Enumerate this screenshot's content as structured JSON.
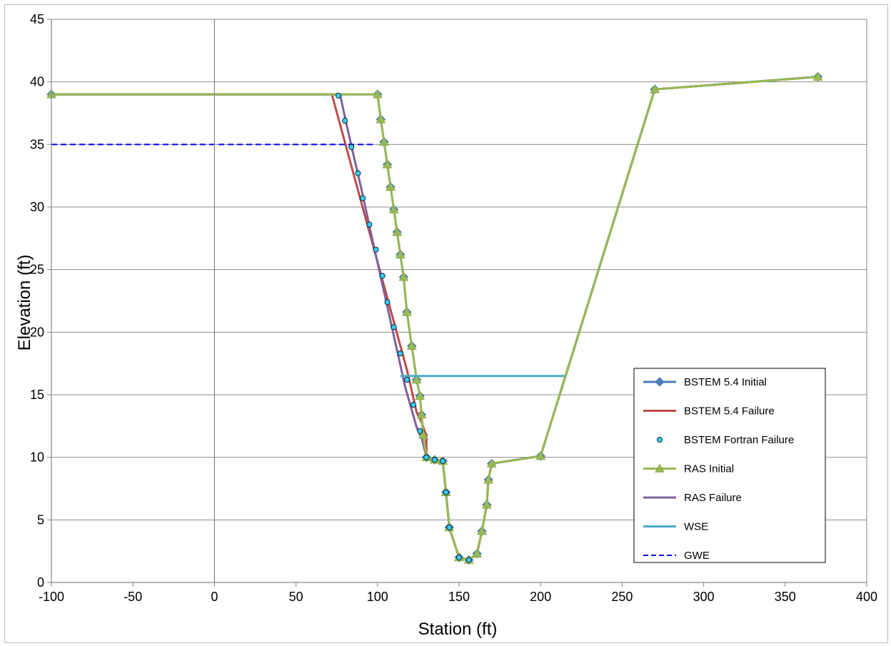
{
  "chart_data": {
    "type": "line",
    "xlabel": "Station (ft)",
    "ylabel": "Elevation (ft)",
    "xlim": [
      -100,
      400
    ],
    "ylim": [
      0,
      45
    ],
    "x_ticks": [
      -100,
      -50,
      0,
      50,
      100,
      150,
      200,
      250,
      300,
      350,
      400
    ],
    "y_ticks": [
      0,
      5,
      10,
      15,
      20,
      25,
      30,
      35,
      40,
      45
    ],
    "grid": "horizontal",
    "legend_position": "right",
    "series": [
      {
        "name": "BSTEM 5.4 Initial",
        "color": "#4a7ebb",
        "marker": "diamond",
        "line": "solid",
        "points": [
          [
            -100,
            39
          ],
          [
            100,
            39
          ],
          [
            102,
            37
          ],
          [
            104,
            35.2
          ],
          [
            106,
            33.4
          ],
          [
            108,
            31.6
          ],
          [
            110,
            29.8
          ],
          [
            112,
            28
          ],
          [
            114,
            26.2
          ],
          [
            116,
            24.4
          ],
          [
            118,
            21.6
          ],
          [
            121,
            18.9
          ],
          [
            124,
            16.2
          ],
          [
            126,
            14.9
          ],
          [
            127,
            13.4
          ],
          [
            128,
            11.8
          ],
          [
            130,
            10
          ],
          [
            135,
            9.8
          ],
          [
            140,
            9.7
          ],
          [
            142,
            7.2
          ],
          [
            144,
            4.4
          ],
          [
            150,
            2
          ],
          [
            156,
            1.8
          ],
          [
            161,
            2.3
          ],
          [
            164,
            4.1
          ],
          [
            167,
            6.2
          ],
          [
            168,
            8.2
          ],
          [
            170,
            9.5
          ],
          [
            200,
            10.1
          ],
          [
            270,
            39.4
          ],
          [
            370,
            40.4
          ]
        ]
      },
      {
        "name": "BSTEM 5.4 Failure",
        "color": "#be4b48",
        "marker": "none",
        "line": "solid",
        "points": [
          [
            -100,
            39
          ],
          [
            72,
            39
          ],
          [
            118,
            17
          ],
          [
            124,
            13.6
          ],
          [
            127,
            12.8
          ],
          [
            130,
            11.7
          ],
          [
            130,
            10
          ],
          [
            135,
            9.8
          ],
          [
            140,
            9.7
          ],
          [
            142,
            7.2
          ],
          [
            144,
            4.4
          ],
          [
            150,
            2
          ],
          [
            156,
            1.8
          ],
          [
            161,
            2.3
          ],
          [
            164,
            4.1
          ],
          [
            167,
            6.2
          ],
          [
            168,
            8.2
          ],
          [
            170,
            9.5
          ],
          [
            200,
            10.1
          ],
          [
            270,
            39.4
          ],
          [
            370,
            40.4
          ]
        ]
      },
      {
        "name": "BSTEM Fortran Failure",
        "color": "#33ccff",
        "marker": "circle",
        "line": "none",
        "points": [
          [
            76,
            38.9
          ],
          [
            80,
            36.9
          ],
          [
            84,
            34.8
          ],
          [
            88,
            32.7
          ],
          [
            91,
            30.7
          ],
          [
            95,
            28.6
          ],
          [
            99,
            26.6
          ],
          [
            103,
            24.5
          ],
          [
            106,
            22.4
          ],
          [
            110,
            20.4
          ],
          [
            114,
            18.3
          ],
          [
            118,
            16.2
          ],
          [
            122,
            14.2
          ],
          [
            126,
            12.1
          ],
          [
            130,
            10
          ],
          [
            135,
            9.8
          ],
          [
            140,
            9.7
          ],
          [
            142,
            7.2
          ],
          [
            144,
            4.4
          ],
          [
            150,
            2
          ],
          [
            156,
            1.8
          ]
        ]
      },
      {
        "name": "RAS Initial",
        "color": "#98b954",
        "marker": "triangle",
        "line": "solid",
        "points": [
          [
            -100,
            39
          ],
          [
            100,
            39
          ],
          [
            102,
            37
          ],
          [
            104,
            35.2
          ],
          [
            106,
            33.4
          ],
          [
            108,
            31.6
          ],
          [
            110,
            29.8
          ],
          [
            112,
            28
          ],
          [
            114,
            26.2
          ],
          [
            116,
            24.4
          ],
          [
            118,
            21.6
          ],
          [
            121,
            18.9
          ],
          [
            124,
            16.2
          ],
          [
            126,
            14.9
          ],
          [
            127,
            13.4
          ],
          [
            128,
            11.8
          ],
          [
            130,
            10
          ],
          [
            135,
            9.8
          ],
          [
            140,
            9.7
          ],
          [
            142,
            7.2
          ],
          [
            144,
            4.4
          ],
          [
            150,
            2
          ],
          [
            156,
            1.8
          ],
          [
            161,
            2.3
          ],
          [
            164,
            4.1
          ],
          [
            167,
            6.2
          ],
          [
            168,
            8.2
          ],
          [
            170,
            9.5
          ],
          [
            200,
            10.1
          ],
          [
            270,
            39.4
          ],
          [
            370,
            40.4
          ]
        ]
      },
      {
        "name": "RAS Failure",
        "color": "#7d60a0",
        "marker": "none",
        "line": "solid",
        "points": [
          [
            -100,
            39
          ],
          [
            77,
            39
          ],
          [
            81,
            36.6
          ],
          [
            85,
            34.3
          ],
          [
            90,
            31.5
          ],
          [
            96,
            27.9
          ],
          [
            103,
            23.8
          ],
          [
            110,
            19.7
          ],
          [
            117,
            15.6
          ],
          [
            124,
            12.4
          ],
          [
            127,
            11.6
          ],
          [
            130,
            10
          ],
          [
            135,
            9.8
          ],
          [
            140,
            9.7
          ],
          [
            142,
            7.2
          ],
          [
            144,
            4.4
          ],
          [
            150,
            2
          ],
          [
            156,
            1.8
          ],
          [
            161,
            2.3
          ],
          [
            164,
            4.1
          ],
          [
            167,
            6.2
          ],
          [
            168,
            8.2
          ],
          [
            170,
            9.5
          ],
          [
            200,
            10.1
          ],
          [
            270,
            39.4
          ],
          [
            370,
            40.4
          ]
        ]
      },
      {
        "name": "WSE",
        "color": "#4bacc6",
        "marker": "none",
        "line": "solid",
        "points": [
          [
            114,
            16.5
          ],
          [
            215,
            16.5
          ]
        ]
      },
      {
        "name": "GWE",
        "color": "#0000ff",
        "marker": "none",
        "line": "dashed",
        "points": [
          [
            -100,
            35
          ],
          [
            98,
            35
          ]
        ]
      }
    ]
  }
}
